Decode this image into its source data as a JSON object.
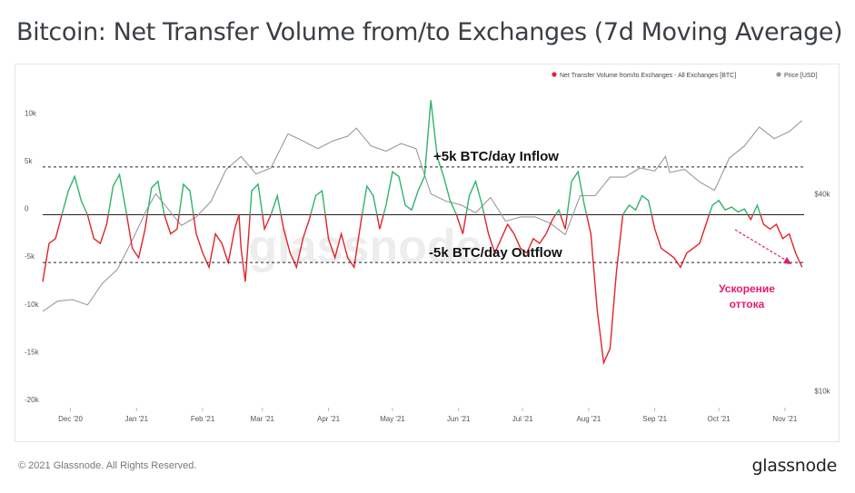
{
  "title": "Bitcoin: Net Transfer Volume from/to Exchanges (7d Moving Average)",
  "footer": "© 2021 Glassnode. All Rights Reserved.",
  "brand": "glassnode",
  "watermark": "glassnode",
  "colors": {
    "inflow": "#2fb36b",
    "outflow": "#e0242b",
    "price": "#9a9a9a",
    "annotation": "#e8196d",
    "text": "#333333"
  },
  "chart_data": {
    "type": "line",
    "legend_position": "top-right",
    "legend": [
      {
        "name": "Net Transfer Volume from/to Exchanges - All Exchanges [BTC]",
        "color": "#e0242b"
      },
      {
        "name": "Price [USD]",
        "color": "#9a9a9a"
      }
    ],
    "left_axis": {
      "ticks": [
        10000,
        5000,
        0,
        -5000,
        -10000,
        -15000,
        -20000
      ],
      "labels": [
        "10k",
        "5k",
        "0",
        "-5k",
        "-10k",
        "-15k",
        "-20k"
      ],
      "ylim": [
        -20000,
        12500
      ]
    },
    "right_axis": {
      "scale": "log",
      "ticks": [
        40000,
        10000
      ],
      "labels": [
        "$40k",
        "$10k"
      ]
    },
    "x_range": [
      "2020-11-18",
      "2021-11-10"
    ],
    "x_ticks": [
      {
        "date": "2020-12-01",
        "label": "Dec '20"
      },
      {
        "date": "2021-01-01",
        "label": "Jan '21"
      },
      {
        "date": "2021-02-01",
        "label": "Feb '21"
      },
      {
        "date": "2021-03-01",
        "label": "Mar '21"
      },
      {
        "date": "2021-04-01",
        "label": "Apr '21"
      },
      {
        "date": "2021-05-01",
        "label": "May '21"
      },
      {
        "date": "2021-06-01",
        "label": "Jun '21"
      },
      {
        "date": "2021-07-01",
        "label": "Jul '21"
      },
      {
        "date": "2021-08-01",
        "label": "Aug '21"
      },
      {
        "date": "2021-09-01",
        "label": "Sep '21"
      },
      {
        "date": "2021-10-01",
        "label": "Oct '21"
      },
      {
        "date": "2021-11-01",
        "label": "Nov '21"
      }
    ],
    "reference_lines": [
      {
        "value": 5000,
        "label": "+5k BTC/day Inflow"
      },
      {
        "value": -5000,
        "label": "-5k BTC/day Outflow"
      }
    ],
    "annotation": {
      "text": [
        "Ускорение",
        "оттока"
      ]
    },
    "series": [
      {
        "name": "Net Transfer Volume from/to Exchanges - All Exchanges [BTC]",
        "points": [
          [
            "2020-11-18",
            -7000
          ],
          [
            "2020-11-21",
            -3000
          ],
          [
            "2020-11-24",
            -2500
          ],
          [
            "2020-11-27",
            0
          ],
          [
            "2020-11-30",
            2500
          ],
          [
            "2020-12-03",
            4000
          ],
          [
            "2020-12-06",
            1500
          ],
          [
            "2020-12-09",
            0
          ],
          [
            "2020-12-12",
            -2500
          ],
          [
            "2020-12-15",
            -3000
          ],
          [
            "2020-12-18",
            -1000
          ],
          [
            "2020-12-21",
            3000
          ],
          [
            "2020-12-24",
            4200
          ],
          [
            "2020-12-27",
            500
          ],
          [
            "2020-12-30",
            -3500
          ],
          [
            "2021-01-02",
            -4500
          ],
          [
            "2021-01-05",
            -1500
          ],
          [
            "2021-01-08",
            2800
          ],
          [
            "2021-01-11",
            3500
          ],
          [
            "2021-01-14",
            0
          ],
          [
            "2021-01-17",
            -2000
          ],
          [
            "2021-01-20",
            -1500
          ],
          [
            "2021-01-23",
            3200
          ],
          [
            "2021-01-26",
            2500
          ],
          [
            "2021-01-29",
            -2000
          ],
          [
            "2021-02-01",
            -4000
          ],
          [
            "2021-02-04",
            -5500
          ],
          [
            "2021-02-07",
            -2000
          ],
          [
            "2021-02-10",
            -3000
          ],
          [
            "2021-02-13",
            -5000
          ],
          [
            "2021-02-16",
            -1500
          ],
          [
            "2021-02-18",
            0
          ],
          [
            "2021-02-19",
            -3500
          ],
          [
            "2021-02-21",
            -7000
          ],
          [
            "2021-02-24",
            2500
          ],
          [
            "2021-02-27",
            3200
          ],
          [
            "2021-03-02",
            -1500
          ],
          [
            "2021-03-05",
            0
          ],
          [
            "2021-03-08",
            2000
          ],
          [
            "2021-03-11",
            -1500
          ],
          [
            "2021-03-14",
            -4000
          ],
          [
            "2021-03-17",
            -5500
          ],
          [
            "2021-03-20",
            -2500
          ],
          [
            "2021-03-23",
            -500
          ],
          [
            "2021-03-26",
            2000
          ],
          [
            "2021-03-29",
            2500
          ],
          [
            "2021-04-01",
            -2500
          ],
          [
            "2021-04-04",
            -4500
          ],
          [
            "2021-04-07",
            -2000
          ],
          [
            "2021-04-10",
            -4500
          ],
          [
            "2021-04-13",
            -5500
          ],
          [
            "2021-04-16",
            -1000
          ],
          [
            "2021-04-19",
            3000
          ],
          [
            "2021-04-22",
            2000
          ],
          [
            "2021-04-25",
            -1500
          ],
          [
            "2021-04-28",
            1000
          ],
          [
            "2021-05-01",
            4500
          ],
          [
            "2021-05-04",
            4000
          ],
          [
            "2021-05-07",
            1000
          ],
          [
            "2021-05-10",
            500
          ],
          [
            "2021-05-13",
            2500
          ],
          [
            "2021-05-16",
            4000
          ],
          [
            "2021-05-19",
            12000
          ],
          [
            "2021-05-22",
            6000
          ],
          [
            "2021-05-25",
            4000
          ],
          [
            "2021-05-28",
            1500
          ],
          [
            "2021-05-31",
            0
          ],
          [
            "2021-06-03",
            -2000
          ],
          [
            "2021-06-06",
            2000
          ],
          [
            "2021-06-09",
            3500
          ],
          [
            "2021-06-12",
            1000
          ],
          [
            "2021-06-15",
            -2000
          ],
          [
            "2021-06-18",
            -4000
          ],
          [
            "2021-06-21",
            -2500
          ],
          [
            "2021-06-24",
            -1000
          ],
          [
            "2021-06-27",
            -2000
          ],
          [
            "2021-06-30",
            -3500
          ],
          [
            "2021-07-03",
            -4000
          ],
          [
            "2021-07-06",
            -2500
          ],
          [
            "2021-07-09",
            -3000
          ],
          [
            "2021-07-12",
            -2000
          ],
          [
            "2021-07-15",
            -500
          ],
          [
            "2021-07-18",
            500
          ],
          [
            "2021-07-21",
            -1500
          ],
          [
            "2021-07-24",
            3500
          ],
          [
            "2021-07-27",
            4500
          ],
          [
            "2021-07-30",
            1000
          ],
          [
            "2021-08-02",
            -2000
          ],
          [
            "2021-08-05",
            -10000
          ],
          [
            "2021-08-08",
            -15500
          ],
          [
            "2021-08-11",
            -14000
          ],
          [
            "2021-08-14",
            -6000
          ],
          [
            "2021-08-17",
            0
          ],
          [
            "2021-08-20",
            1000
          ],
          [
            "2021-08-23",
            500
          ],
          [
            "2021-08-26",
            2000
          ],
          [
            "2021-08-29",
            1500
          ],
          [
            "2021-09-01",
            -1500
          ],
          [
            "2021-09-04",
            -3500
          ],
          [
            "2021-09-07",
            -4000
          ],
          [
            "2021-09-10",
            -4500
          ],
          [
            "2021-09-13",
            -5500
          ],
          [
            "2021-09-16",
            -4000
          ],
          [
            "2021-09-19",
            -3500
          ],
          [
            "2021-09-22",
            -3000
          ],
          [
            "2021-09-25",
            -1000
          ],
          [
            "2021-09-28",
            1000
          ],
          [
            "2021-10-01",
            1500
          ],
          [
            "2021-10-04",
            500
          ],
          [
            "2021-10-07",
            800
          ],
          [
            "2021-10-10",
            300
          ],
          [
            "2021-10-13",
            600
          ],
          [
            "2021-10-16",
            -500
          ],
          [
            "2021-10-19",
            1000
          ],
          [
            "2021-10-22",
            -1000
          ],
          [
            "2021-10-25",
            -1500
          ],
          [
            "2021-10-28",
            -1000
          ],
          [
            "2021-10-31",
            -2500
          ],
          [
            "2021-11-03",
            -2000
          ],
          [
            "2021-11-06",
            -4000
          ],
          [
            "2021-11-09",
            -5500
          ]
        ]
      },
      {
        "name": "Price [USD]",
        "points": [
          [
            "2020-11-18",
            17500
          ],
          [
            "2020-11-25",
            18800
          ],
          [
            "2020-12-02",
            19000
          ],
          [
            "2020-12-09",
            18300
          ],
          [
            "2020-12-16",
            21300
          ],
          [
            "2020-12-23",
            23500
          ],
          [
            "2020-12-30",
            28900
          ],
          [
            "2021-01-06",
            36000
          ],
          [
            "2021-01-10",
            40000
          ],
          [
            "2021-01-15",
            36500
          ],
          [
            "2021-01-22",
            32000
          ],
          [
            "2021-01-29",
            34000
          ],
          [
            "2021-02-05",
            38000
          ],
          [
            "2021-02-12",
            47500
          ],
          [
            "2021-02-19",
            52000
          ],
          [
            "2021-02-26",
            46000
          ],
          [
            "2021-03-05",
            48000
          ],
          [
            "2021-03-13",
            61000
          ],
          [
            "2021-03-20",
            58000
          ],
          [
            "2021-03-27",
            55000
          ],
          [
            "2021-04-03",
            58000
          ],
          [
            "2021-04-10",
            60000
          ],
          [
            "2021-04-14",
            63500
          ],
          [
            "2021-04-21",
            56000
          ],
          [
            "2021-04-28",
            54000
          ],
          [
            "2021-05-05",
            57000
          ],
          [
            "2021-05-12",
            55000
          ],
          [
            "2021-05-19",
            40000
          ],
          [
            "2021-05-26",
            38000
          ],
          [
            "2021-06-02",
            37000
          ],
          [
            "2021-06-09",
            35000
          ],
          [
            "2021-06-16",
            39000
          ],
          [
            "2021-06-23",
            33000
          ],
          [
            "2021-06-30",
            34000
          ],
          [
            "2021-07-07",
            34000
          ],
          [
            "2021-07-14",
            32500
          ],
          [
            "2021-07-21",
            30000
          ],
          [
            "2021-07-28",
            39500
          ],
          [
            "2021-08-04",
            39500
          ],
          [
            "2021-08-11",
            45000
          ],
          [
            "2021-08-18",
            45000
          ],
          [
            "2021-08-25",
            48000
          ],
          [
            "2021-09-01",
            47000
          ],
          [
            "2021-09-06",
            52000
          ],
          [
            "2021-09-08",
            46500
          ],
          [
            "2021-09-15",
            47500
          ],
          [
            "2021-09-22",
            43500
          ],
          [
            "2021-09-29",
            41000
          ],
          [
            "2021-10-06",
            51500
          ],
          [
            "2021-10-13",
            56000
          ],
          [
            "2021-10-20",
            64000
          ],
          [
            "2021-10-27",
            59000
          ],
          [
            "2021-11-03",
            62000
          ],
          [
            "2021-11-09",
            67000
          ]
        ]
      }
    ]
  }
}
